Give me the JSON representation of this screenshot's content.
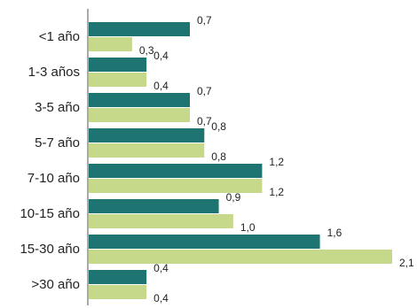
{
  "chart_data": {
    "type": "bar",
    "orientation": "horizontal",
    "categories": [
      "<1 año",
      "1-3 años",
      "3-5 año",
      "5-7 año",
      "7-10 año",
      "10-15 año",
      "15-30 año",
      ">30 año"
    ],
    "series": [
      {
        "values": [
          0.7,
          0.4,
          0.7,
          0.8,
          1.2,
          0.9,
          1.6,
          0.4
        ],
        "labels": [
          "0,7",
          "0,4",
          "0,7",
          "0,8",
          "1,2",
          "0,9",
          "1,6",
          "0,4"
        ],
        "color": "#1e7470"
      },
      {
        "values": [
          0.3,
          0.4,
          0.7,
          0.8,
          1.2,
          1.0,
          2.1,
          0.4
        ],
        "labels": [
          "0,3",
          "0,4",
          "0,7",
          "0,8",
          "1,2",
          "1,0",
          "2,1",
          "0,4"
        ],
        "color": "#c6d98a"
      }
    ],
    "xlim": [
      0,
      2.1
    ],
    "title": "",
    "xlabel": "",
    "ylabel": "",
    "grid": false,
    "legend": "none"
  }
}
